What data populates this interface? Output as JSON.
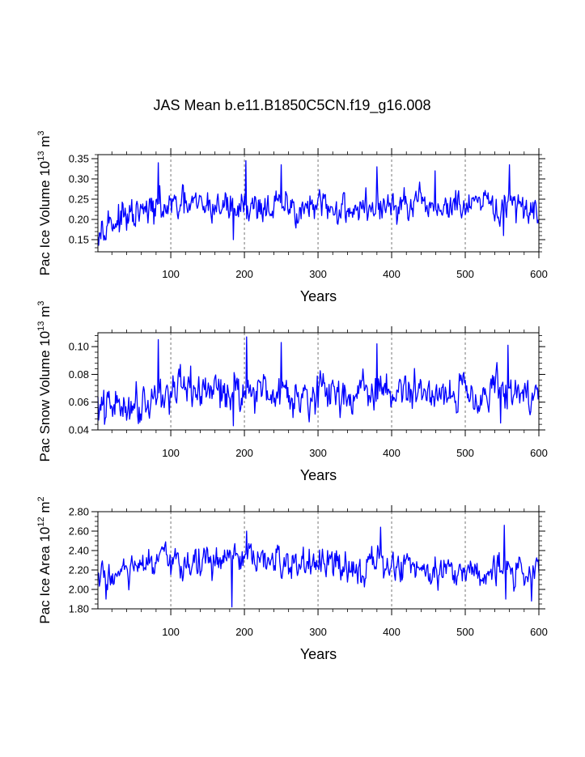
{
  "title": "JAS Mean b.e11.B1850C5CN.f19_g16.008",
  "colors": {
    "line": "#0000ff",
    "axis": "#000000",
    "grid": "#555555"
  },
  "chart_data": [
    {
      "type": "line",
      "ylabel": "Pac Ice Volume 10",
      "ylabel_exp": "13",
      "ylabel_unit": "m",
      "ylabel_unit_exp": "3",
      "xlabel": "Years",
      "xlim": [
        1,
        600
      ],
      "ylim": [
        0.12,
        0.36
      ],
      "xticks": [
        100,
        200,
        300,
        400,
        500,
        600
      ],
      "yticks": [
        "0.15",
        "0.20",
        "0.25",
        "0.30",
        "0.35"
      ],
      "yminor_step": 0.01,
      "grid_x": [
        100,
        200,
        300,
        400,
        500
      ],
      "series": [
        {
          "name": "Pac Ice Volume",
          "baseline": [
            [
              1,
              0.19
            ],
            [
              40,
              0.2
            ],
            [
              70,
              0.22
            ],
            [
              100,
              0.23
            ],
            [
              200,
              0.235
            ],
            [
              300,
              0.225
            ],
            [
              400,
              0.23
            ],
            [
              500,
              0.23
            ],
            [
              600,
              0.23
            ]
          ],
          "amplitude": 0.032,
          "highlights": [
            [
              83,
              0.34
            ],
            [
              202,
              0.345
            ],
            [
              250,
              0.335
            ],
            [
              380,
              0.33
            ],
            [
              459,
              0.32
            ],
            [
              560,
              0.335
            ],
            [
              185,
              0.15
            ],
            [
              552,
              0.16
            ],
            [
              10,
              0.16
            ]
          ]
        }
      ]
    },
    {
      "type": "line",
      "ylabel": "Pac Snow Volume 10",
      "ylabel_exp": "13",
      "ylabel_unit": "m",
      "ylabel_unit_exp": "3",
      "xlabel": "Years",
      "xlim": [
        1,
        600
      ],
      "ylim": [
        0.04,
        0.11
      ],
      "xticks": [
        100,
        200,
        300,
        400,
        500,
        600
      ],
      "yticks": [
        "0.04",
        "0.06",
        "0.08",
        "0.10"
      ],
      "yminor_step": 0.004,
      "grid_x": [
        100,
        200,
        300,
        400,
        500
      ],
      "series": [
        {
          "name": "Pac Snow Volume",
          "baseline": [
            [
              1,
              0.055
            ],
            [
              40,
              0.058
            ],
            [
              70,
              0.063
            ],
            [
              100,
              0.067
            ],
            [
              200,
              0.069
            ],
            [
              300,
              0.066
            ],
            [
              400,
              0.067
            ],
            [
              500,
              0.068
            ],
            [
              600,
              0.066
            ]
          ],
          "amplitude": 0.011,
          "highlights": [
            [
              83,
              0.105
            ],
            [
              203,
              0.107
            ],
            [
              250,
              0.103
            ],
            [
              380,
              0.102
            ],
            [
              558,
              0.101
            ],
            [
              185,
              0.043
            ],
            [
              548,
              0.045
            ],
            [
              10,
              0.044
            ]
          ]
        }
      ]
    },
    {
      "type": "line",
      "ylabel": "Pac Ice Area 10",
      "ylabel_exp": "12",
      "ylabel_unit": "m",
      "ylabel_unit_exp": "2",
      "xlabel": "Years",
      "xlim": [
        1,
        600
      ],
      "ylim": [
        1.8,
        2.8
      ],
      "xticks": [
        100,
        200,
        300,
        400,
        500,
        600
      ],
      "yticks": [
        "1.80",
        "2.00",
        "2.20",
        "2.40",
        "2.60",
        "2.80"
      ],
      "yminor_step": 0.05,
      "grid_x": [
        100,
        200,
        300,
        400,
        500
      ],
      "series": [
        {
          "name": "Pac Ice Area",
          "baseline": [
            [
              1,
              2.12
            ],
            [
              40,
              2.17
            ],
            [
              80,
              2.27
            ],
            [
              150,
              2.28
            ],
            [
              200,
              2.3
            ],
            [
              300,
              2.24
            ],
            [
              400,
              2.25
            ],
            [
              500,
              2.2
            ],
            [
              600,
              2.18
            ]
          ],
          "amplitude": 0.13,
          "highlights": [
            [
              203,
              2.6
            ],
            [
              385,
              2.64
            ],
            [
              553,
              2.66
            ],
            [
              183,
              1.82
            ],
            [
              555,
              1.9
            ],
            [
              590,
              1.88
            ],
            [
              12,
              1.9
            ]
          ]
        }
      ]
    }
  ]
}
